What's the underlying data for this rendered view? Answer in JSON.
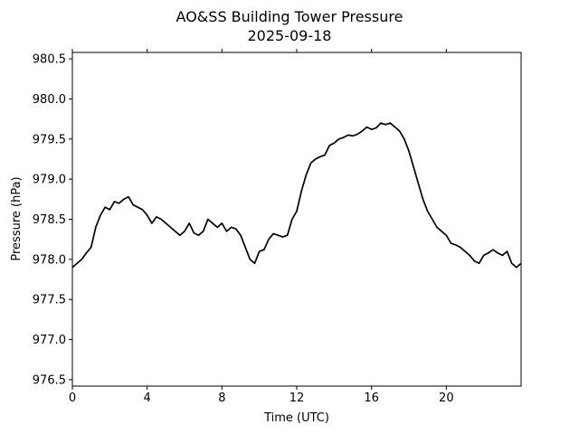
{
  "chart_data": {
    "type": "line",
    "title": "AO&SS Building Tower Pressure",
    "subtitle": "2025-09-18",
    "xlabel": "Time (UTC)",
    "ylabel": "Pressure (hPa)",
    "xlim": [
      0,
      24
    ],
    "ylim": [
      976.42,
      980.58
    ],
    "xticks": [
      0,
      4,
      8,
      12,
      16,
      20
    ],
    "xtick_labels": [
      "0",
      "4",
      "8",
      "12",
      "16",
      "20"
    ],
    "yticks": [
      976.5,
      977.0,
      977.5,
      978.0,
      978.5,
      979.0,
      979.5,
      980.0,
      980.5
    ],
    "ytick_labels": [
      "976.5",
      "977.0",
      "977.5",
      "978.0",
      "978.5",
      "979.0",
      "979.5",
      "980.0",
      "980.5"
    ],
    "grid": false,
    "line_color": "#000000",
    "series": [
      {
        "x": [
          0,
          0.25,
          0.5,
          0.75,
          1,
          1.25,
          1.5,
          1.75,
          2,
          2.25,
          2.5,
          2.75,
          3,
          3.25,
          3.5,
          3.75,
          4,
          4.25,
          4.5,
          4.75,
          5,
          5.25,
          5.5,
          5.75,
          6,
          6.25,
          6.5,
          6.75,
          7,
          7.25,
          7.5,
          7.75,
          8,
          8.25,
          8.5,
          8.75,
          9,
          9.25,
          9.5,
          9.75,
          10,
          10.25,
          10.5,
          10.75,
          11,
          11.25,
          11.5,
          11.75,
          12,
          12.25,
          12.5,
          12.75,
          13,
          13.25,
          13.5,
          13.75,
          14,
          14.25,
          14.5,
          14.75,
          15,
          15.25,
          15.5,
          15.75,
          16,
          16.25,
          16.5,
          16.75,
          17,
          17.25,
          17.5,
          17.75,
          18,
          18.25,
          18.5,
          18.75,
          19,
          19.25,
          19.5,
          19.75,
          20,
          20.25,
          20.5,
          20.75,
          21,
          21.25,
          21.5,
          21.75,
          22,
          22.25,
          22.5,
          22.75,
          23,
          23.25,
          23.5,
          23.75,
          24
        ],
        "y": [
          977.9,
          977.95,
          978.0,
          978.08,
          978.15,
          978.4,
          978.55,
          978.65,
          978.62,
          978.72,
          978.7,
          978.75,
          978.78,
          978.68,
          978.65,
          978.62,
          978.55,
          978.45,
          978.53,
          978.5,
          978.45,
          978.4,
          978.35,
          978.3,
          978.35,
          978.45,
          978.33,
          978.3,
          978.35,
          978.5,
          978.45,
          978.4,
          978.45,
          978.35,
          978.4,
          978.38,
          978.3,
          978.15,
          978.0,
          977.95,
          978.1,
          978.12,
          978.25,
          978.32,
          978.3,
          978.28,
          978.3,
          978.5,
          978.6,
          978.85,
          979.05,
          979.2,
          979.25,
          979.28,
          979.3,
          979.42,
          979.45,
          979.5,
          979.52,
          979.55,
          979.54,
          979.56,
          979.6,
          979.65,
          979.62,
          979.64,
          979.7,
          979.68,
          979.7,
          979.65,
          979.6,
          979.5,
          979.35,
          979.15,
          978.95,
          978.75,
          978.6,
          978.5,
          978.4,
          978.35,
          978.3,
          978.2,
          978.18,
          978.15,
          978.1,
          978.05,
          977.98,
          977.95,
          978.05,
          978.08,
          978.12,
          978.08,
          978.05,
          978.1,
          977.95,
          977.9,
          977.95
        ]
      }
    ]
  }
}
